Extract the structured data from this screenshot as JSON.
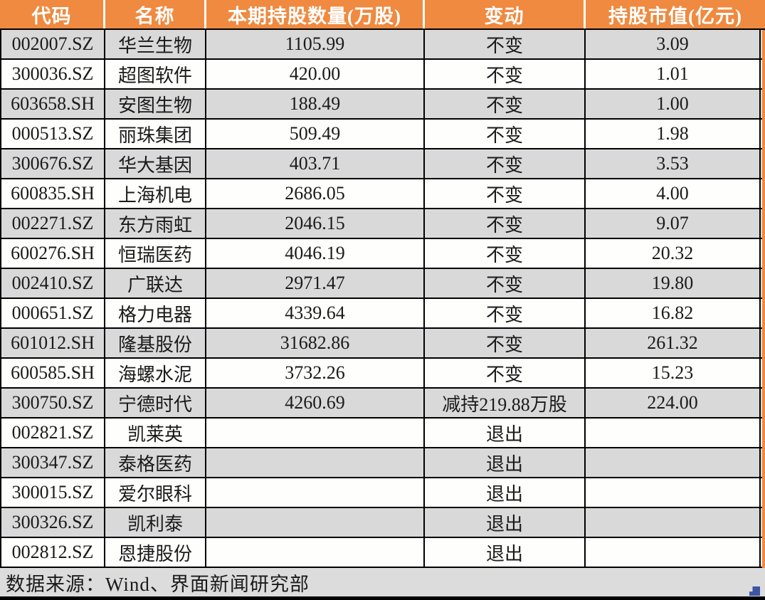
{
  "colors": {
    "header_bg": "#EF8A40",
    "row_alt_bg": "#D9D9D9",
    "row_bg": "#FEFEFD",
    "footer_bg": "#DCDCDC",
    "border": "#000000",
    "text": "#1A1A1A",
    "watermark_blue": "#3C55A5"
  },
  "chart_data": {
    "type": "table",
    "columns": [
      "代码",
      "名称",
      "本期持股数量(万股)",
      "变动",
      "持股市值(亿元)"
    ],
    "rows": [
      [
        "002007.SZ",
        "华兰生物",
        "1105.99",
        "不变",
        "3.09"
      ],
      [
        "300036.SZ",
        "超图软件",
        "420.00",
        "不变",
        "1.01"
      ],
      [
        "603658.SH",
        "安图生物",
        "188.49",
        "不变",
        "1.00"
      ],
      [
        "000513.SZ",
        "丽珠集团",
        "509.49",
        "不变",
        "1.98"
      ],
      [
        "300676.SZ",
        "华大基因",
        "403.71",
        "不变",
        "3.53"
      ],
      [
        "600835.SH",
        "上海机电",
        "2686.05",
        "不变",
        "4.00"
      ],
      [
        "002271.SZ",
        "东方雨虹",
        "2046.15",
        "不变",
        "9.07"
      ],
      [
        "600276.SH",
        "恒瑞医药",
        "4046.19",
        "不变",
        "20.32"
      ],
      [
        "002410.SZ",
        "广联达",
        "2971.47",
        "不变",
        "19.80"
      ],
      [
        "000651.SZ",
        "格力电器",
        "4339.64",
        "不变",
        "16.82"
      ],
      [
        "601012.SH",
        "隆基股份",
        "31682.86",
        "不变",
        "261.32"
      ],
      [
        "600585.SH",
        "海螺水泥",
        "3732.26",
        "不变",
        "15.23"
      ],
      [
        "300750.SZ",
        "宁德时代",
        "4260.69",
        "减持219.88万股",
        "224.00"
      ],
      [
        "002821.SZ",
        "凯莱英",
        "",
        "退出",
        ""
      ],
      [
        "300347.SZ",
        "泰格医药",
        "",
        "退出",
        ""
      ],
      [
        "300015.SZ",
        "爱尔眼科",
        "",
        "退出",
        ""
      ],
      [
        "300326.SZ",
        "凯利泰",
        "",
        "退出",
        ""
      ],
      [
        "002812.SZ",
        "恩捷股份",
        "",
        "退出",
        ""
      ]
    ],
    "source_note": "数据来源：Wind、界面新闻研究部"
  }
}
